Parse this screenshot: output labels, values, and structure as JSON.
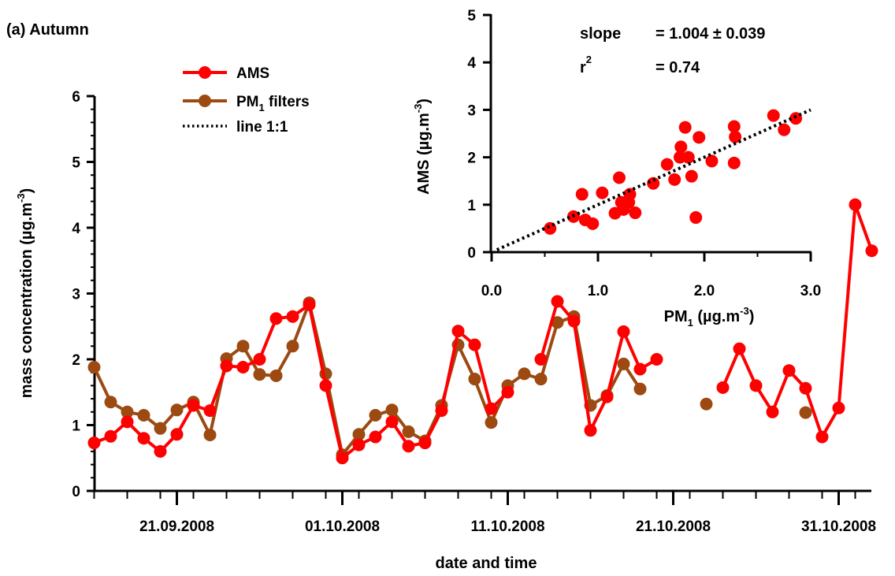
{
  "chart_data": [
    {
      "type": "line",
      "panel_label": "(a) Autumn",
      "xlabel": "date and time",
      "ylabel": "mass concentration (µg.m",
      "ylabel_sup": "-3",
      "ylabel_end": ")",
      "ylim": [
        0,
        6
      ],
      "xlim": [
        "2008-09-16",
        "2008-11-01"
      ],
      "y_ticks": [
        "0",
        "1",
        "2",
        "3",
        "4",
        "5",
        "6"
      ],
      "x_tick_labels": [
        {
          "date": "2008-09-21",
          "label": "21.09.2008"
        },
        {
          "date": "2008-10-01",
          "label": "01.10.2008"
        },
        {
          "date": "2008-10-11",
          "label": "11.10.2008"
        },
        {
          "date": "2008-10-21",
          "label": "21.10.2008"
        },
        {
          "date": "2008-10-31",
          "label": "31.10.2008"
        }
      ],
      "legend": [
        {
          "label": "AMS",
          "sub": "",
          "after": "",
          "color": "#ff0000",
          "style": "line-marker"
        },
        {
          "label": "PM",
          "sub": "1",
          "after": " filters",
          "color": "#9c4a12",
          "style": "line-marker"
        },
        {
          "label": "line 1:1",
          "sub": "",
          "after": "",
          "color": "#000000",
          "style": "dotted"
        }
      ],
      "series": [
        {
          "name": "AMS",
          "color": "#ff0000",
          "points": [
            [
              "2008-09-16",
              0.73
            ],
            [
              "2008-09-17",
              0.83
            ],
            [
              "2008-09-18",
              1.05
            ],
            [
              "2008-09-19",
              0.8
            ],
            [
              "2008-09-20",
              0.6
            ],
            [
              "2008-09-21",
              0.86
            ],
            [
              "2008-09-22",
              1.3
            ],
            [
              "2008-09-23",
              1.22
            ],
            [
              "2008-09-24",
              1.9
            ],
            [
              "2008-09-25",
              1.88
            ],
            [
              "2008-09-26",
              2.0
            ],
            [
              "2008-09-27",
              2.62
            ],
            [
              "2008-09-28",
              2.65
            ],
            [
              "2008-09-29",
              2.83
            ],
            [
              "2008-09-30",
              1.6
            ],
            [
              "2008-10-01",
              0.5
            ],
            [
              "2008-10-02",
              0.7
            ],
            [
              "2008-10-03",
              0.82
            ],
            [
              "2008-10-04",
              1.05
            ],
            [
              "2008-10-05",
              0.68
            ],
            [
              "2008-10-06",
              0.73
            ],
            [
              "2008-10-07",
              1.22
            ],
            [
              "2008-10-08",
              2.43
            ],
            [
              "2008-10-09",
              2.22
            ],
            [
              "2008-10-10",
              1.25
            ],
            [
              "2008-10-11",
              1.5
            ],
            null,
            [
              "2008-10-13",
              2.0
            ],
            [
              "2008-10-14",
              2.88
            ],
            [
              "2008-10-15",
              2.58
            ],
            [
              "2008-10-16",
              0.92
            ],
            [
              "2008-10-17",
              1.43
            ],
            [
              "2008-10-18",
              2.42
            ],
            [
              "2008-10-19",
              1.85
            ],
            [
              "2008-10-20",
              2.0
            ],
            null,
            [
              "2008-10-24",
              1.57
            ],
            [
              "2008-10-25",
              2.16
            ],
            [
              "2008-10-26",
              1.6
            ],
            [
              "2008-10-27",
              1.2
            ],
            [
              "2008-10-28",
              1.83
            ],
            [
              "2008-10-29",
              1.56
            ],
            [
              "2008-10-30",
              0.82
            ],
            [
              "2008-10-31",
              1.26
            ],
            [
              "2008-11-01",
              4.35
            ],
            [
              "2008-11-02",
              3.65
            ]
          ]
        },
        {
          "name": "PM1 filters",
          "color": "#9c4a12",
          "points": [
            [
              "2008-09-16",
              1.88
            ],
            [
              "2008-09-17",
              1.35
            ],
            [
              "2008-09-18",
              1.2
            ],
            [
              "2008-09-19",
              1.15
            ],
            [
              "2008-09-20",
              0.95
            ],
            [
              "2008-09-21",
              1.23
            ],
            [
              "2008-09-22",
              1.35
            ],
            [
              "2008-09-23",
              0.85
            ],
            [
              "2008-09-24",
              2.01
            ],
            [
              "2008-09-25",
              2.2
            ],
            [
              "2008-09-26",
              1.77
            ],
            [
              "2008-09-27",
              1.75
            ],
            [
              "2008-09-28",
              2.2
            ],
            [
              "2008-09-29",
              2.86
            ],
            [
              "2008-09-30",
              1.78
            ],
            [
              "2008-10-01",
              0.55
            ],
            [
              "2008-10-02",
              0.86
            ],
            [
              "2008-10-03",
              1.15
            ],
            [
              "2008-10-04",
              1.23
            ],
            [
              "2008-10-05",
              0.9
            ],
            [
              "2008-10-06",
              0.76
            ],
            [
              "2008-10-07",
              1.3
            ],
            [
              "2008-10-08",
              2.22
            ],
            [
              "2008-10-09",
              1.7
            ],
            [
              "2008-10-10",
              1.04
            ],
            [
              "2008-10-11",
              1.6
            ],
            [
              "2008-10-12",
              1.78
            ],
            [
              "2008-10-13",
              1.7
            ],
            [
              "2008-10-14",
              2.56
            ],
            [
              "2008-10-15",
              2.65
            ],
            [
              "2008-10-16",
              1.3
            ],
            [
              "2008-10-17",
              1.45
            ],
            [
              "2008-10-18",
              1.93
            ],
            [
              "2008-10-19",
              1.55
            ],
            null,
            [
              "2008-10-23",
              1.32
            ],
            null,
            [
              "2008-10-29",
              1.19
            ]
          ]
        }
      ]
    },
    {
      "type": "scatter",
      "xlabel": "PM",
      "xlabel_sub": "1",
      "xlabel_rest": "  (µg.m",
      "xlabel_sup": "-3",
      "xlabel_end": ")",
      "ylabel": "AMS  (µg.m",
      "ylabel_sup": "-3",
      "ylabel_end": ")",
      "xlim": [
        0,
        3
      ],
      "ylim": [
        0,
        5
      ],
      "x_ticks": [
        "0.0",
        "1.0",
        "2.0",
        "3.0"
      ],
      "y_ticks": [
        "0",
        "1",
        "2",
        "3",
        "4",
        "5"
      ],
      "color": "#ff0000",
      "fit_line": {
        "x": [
          0.05,
          3.0
        ],
        "y": [
          0.05,
          3.0
        ],
        "style": "dotted",
        "color": "#000000"
      },
      "stats": {
        "slope_label": "slope",
        "slope_value": "= 1.004 ± 0.039",
        "r2_label": "r",
        "r2_sup": "2",
        "r2_value": "= 0.74"
      },
      "points": [
        [
          0.55,
          0.5
        ],
        [
          0.77,
          0.75
        ],
        [
          0.85,
          1.22
        ],
        [
          0.88,
          0.68
        ],
        [
          0.95,
          0.6
        ],
        [
          1.04,
          1.25
        ],
        [
          1.16,
          0.82
        ],
        [
          1.2,
          1.57
        ],
        [
          1.22,
          1.05
        ],
        [
          1.24,
          0.9
        ],
        [
          1.29,
          1.05
        ],
        [
          1.3,
          1.22
        ],
        [
          1.35,
          0.83
        ],
        [
          1.52,
          1.45
        ],
        [
          1.65,
          1.85
        ],
        [
          1.72,
          1.53
        ],
        [
          1.77,
          2.0
        ],
        [
          1.78,
          2.22
        ],
        [
          1.82,
          2.63
        ],
        [
          1.85,
          2.0
        ],
        [
          1.88,
          1.6
        ],
        [
          1.92,
          0.73
        ],
        [
          1.95,
          2.42
        ],
        [
          2.07,
          1.92
        ],
        [
          2.28,
          1.88
        ],
        [
          2.28,
          2.65
        ],
        [
          2.29,
          2.43
        ],
        [
          2.65,
          2.88
        ],
        [
          2.75,
          2.58
        ],
        [
          2.86,
          2.82
        ]
      ]
    }
  ]
}
